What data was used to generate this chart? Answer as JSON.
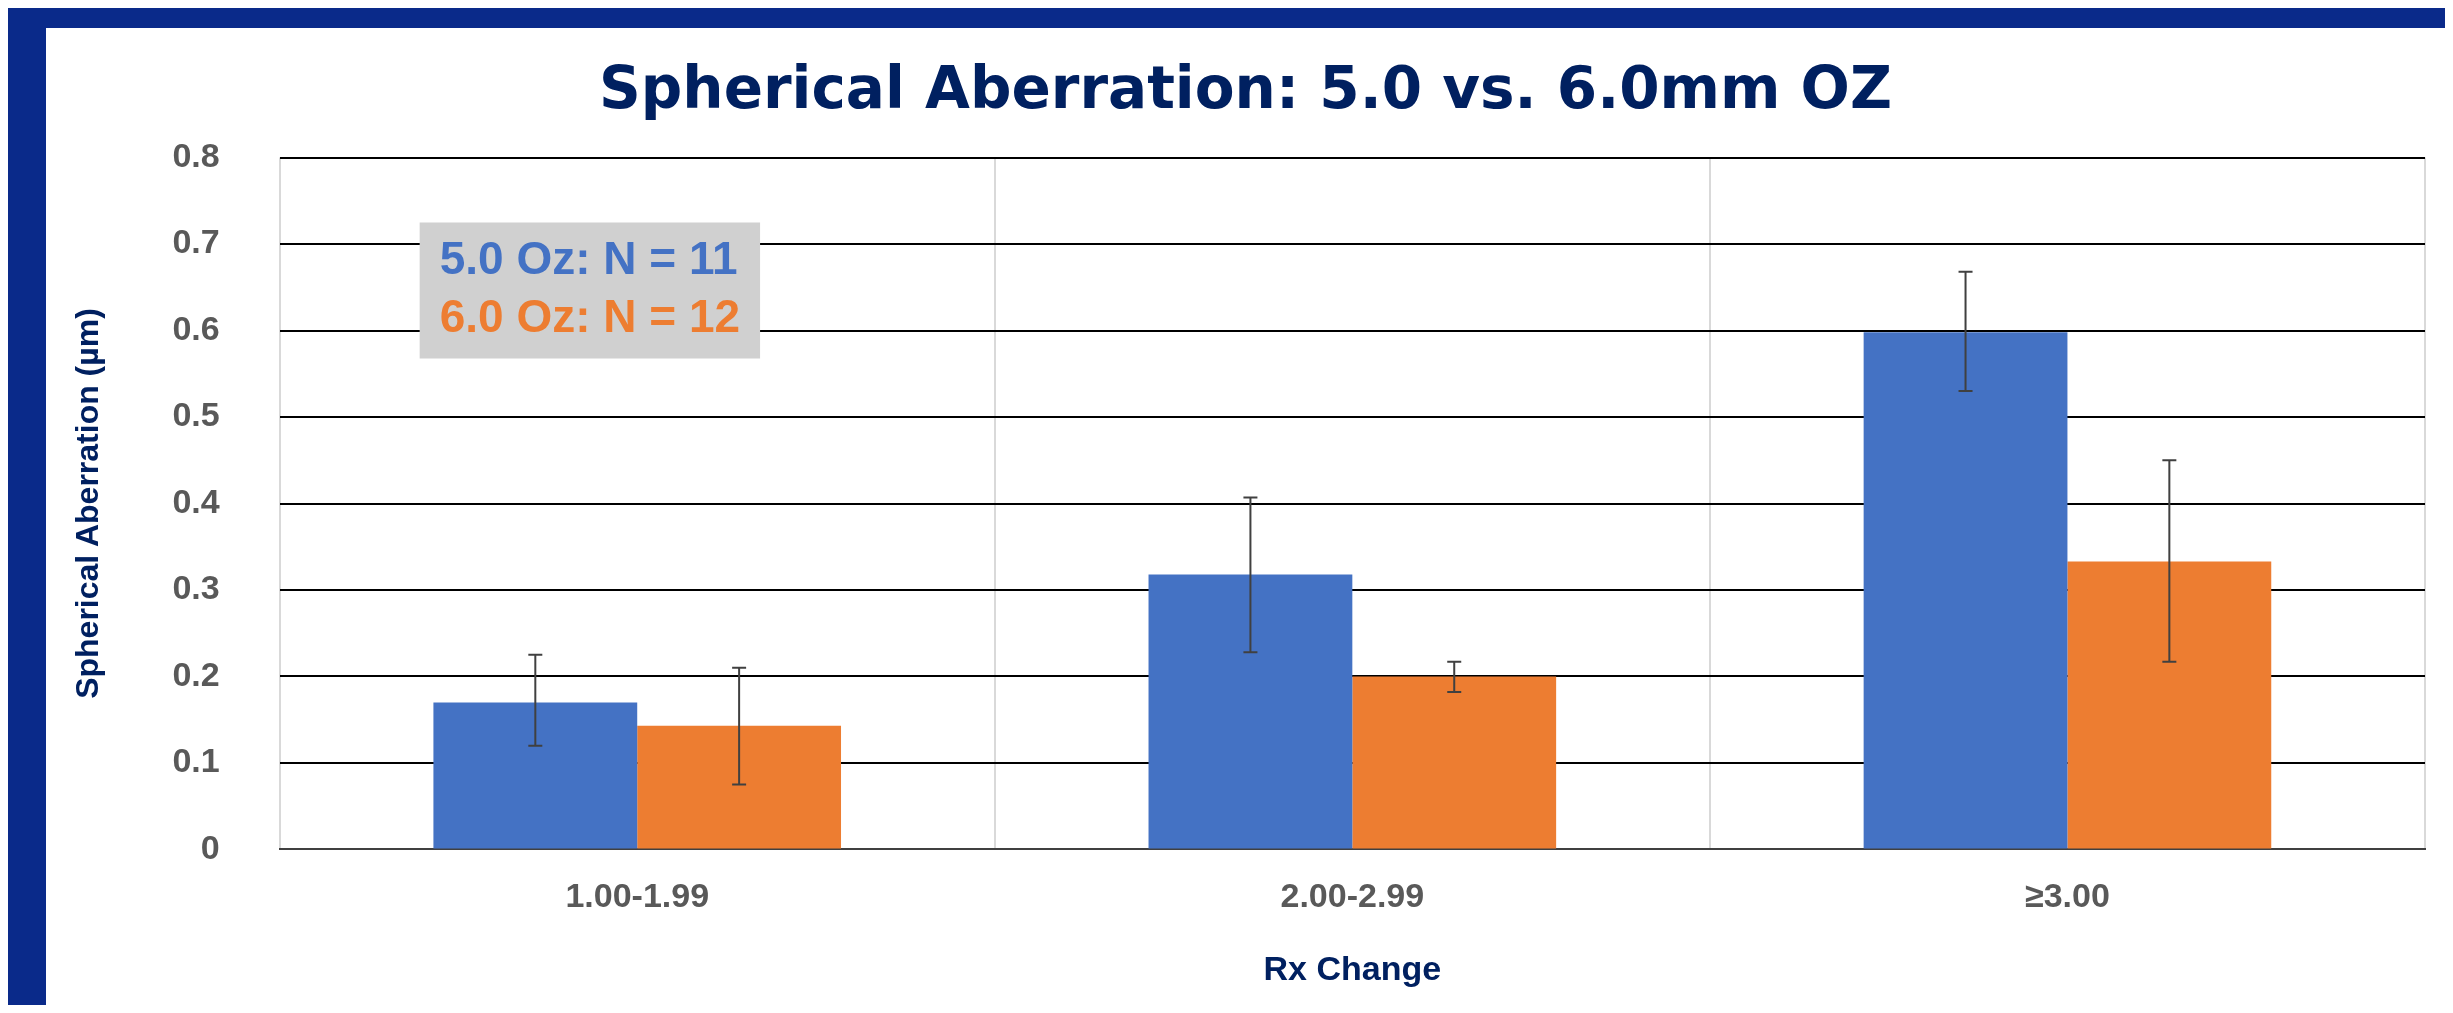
{
  "chart_data": {
    "type": "bar",
    "title": "Spherical Aberration: 5.0 vs. 6.0mm OZ",
    "xlabel": "Rx Change",
    "ylabel": "Spherical Aberration (µm)",
    "categories": [
      "1.00-1.99",
      "2.00-2.99",
      "≥3.00"
    ],
    "series": [
      {
        "name": "5.0 Oz: N = 11",
        "color": "#4472c4",
        "values": [
          0.17,
          0.318,
          0.598
        ],
        "errors": [
          [
            0.12,
            0.225
          ],
          [
            0.228,
            0.407
          ],
          [
            0.53,
            0.668
          ]
        ]
      },
      {
        "name": "6.0 Oz: N = 12",
        "color": "#ed7d31",
        "values": [
          0.143,
          0.2,
          0.333
        ],
        "errors": [
          [
            0.075,
            0.21
          ],
          [
            0.182,
            0.217
          ],
          [
            0.217,
            0.45
          ]
        ]
      }
    ],
    "ylim": [
      0,
      0.8
    ],
    "yticks": [
      0,
      0.1,
      0.2,
      0.3,
      0.4,
      0.5,
      0.6,
      0.7,
      0.8
    ],
    "grid": true,
    "legend": "top left"
  }
}
